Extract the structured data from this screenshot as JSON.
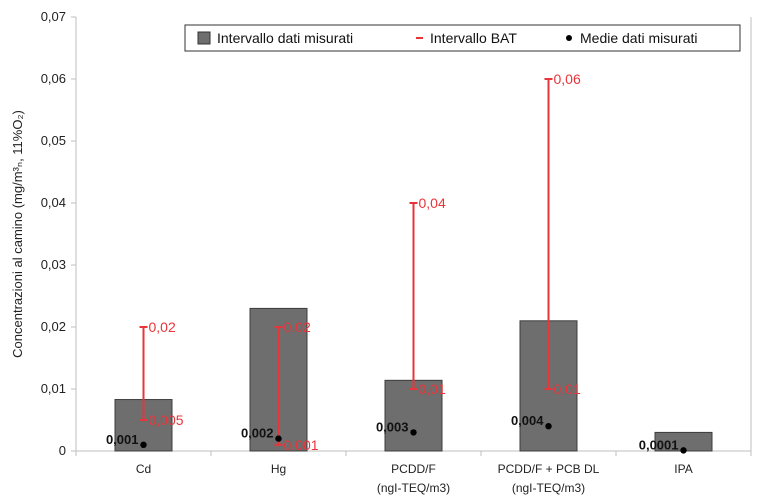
{
  "chart_data": {
    "type": "bar",
    "ylabel": "Concentrazioni al camino (mg/m³ₙ, 11%O₂)",
    "ylim": [
      0,
      0.07
    ],
    "yticks": [
      "0",
      "0,01",
      "0,02",
      "0,03",
      "0,04",
      "0,05",
      "0,06",
      "0,07"
    ],
    "grid": false,
    "legend_position": "top-right",
    "categories": [
      {
        "line1": "Cd",
        "line2": ""
      },
      {
        "line1": "Hg",
        "line2": ""
      },
      {
        "line1": "PCDD/F",
        "line2": "(ngI-TEQ/m3)"
      },
      {
        "line1": "PCDD/F + PCB DL",
        "line2": "(ngI-TEQ/m3)"
      },
      {
        "line1": "IPA",
        "line2": ""
      }
    ],
    "series": [
      {
        "name": "Intervallo dati misurati",
        "type": "bar",
        "color": "#6e6e6e",
        "values": [
          0.0083,
          0.023,
          0.0114,
          0.021,
          0.003
        ]
      },
      {
        "name": "Intervallo BAT",
        "type": "range",
        "color": "#e8353a",
        "ranges": [
          {
            "low": 0.005,
            "high": 0.02,
            "low_label": "0,005",
            "high_label": "0,02"
          },
          {
            "low": 0.001,
            "high": 0.02,
            "low_label": "0,001",
            "high_label": "0,02"
          },
          {
            "low": 0.01,
            "high": 0.04,
            "low_label": "0,01",
            "high_label": "0,04"
          },
          {
            "low": 0.01,
            "high": 0.06,
            "low_label": "0,01",
            "high_label": "0,06"
          },
          null
        ]
      },
      {
        "name": "Medie dati misurati",
        "type": "point",
        "color": "#000000",
        "values": [
          0.001,
          0.002,
          0.003,
          0.004,
          0.0001
        ],
        "labels": [
          "0,001",
          "0,002",
          "0,003",
          "0,004",
          "0,0001"
        ]
      }
    ]
  }
}
